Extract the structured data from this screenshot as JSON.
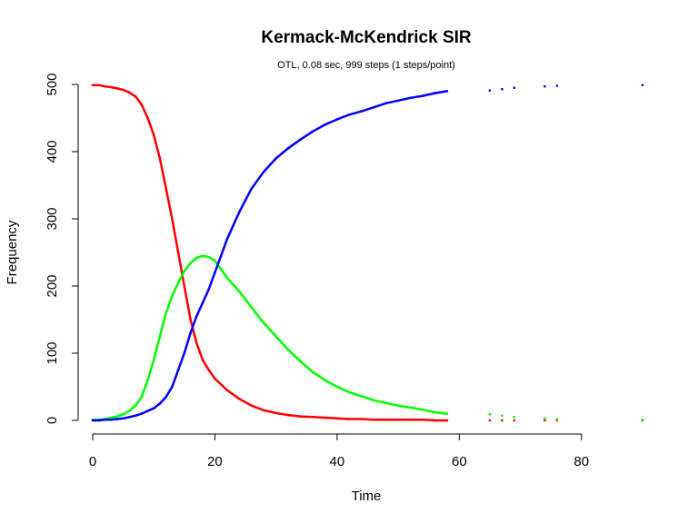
{
  "chart_data": {
    "type": "scatter",
    "title": "Kermack-McKendrick SIR",
    "subtitle": "OTL, 0.08 sec, 999 steps (1 steps/point)",
    "xlabel": "Time",
    "ylabel": "Frequency",
    "xlim": [
      0,
      90
    ],
    "ylim": [
      0,
      500
    ],
    "x_ticks": [
      0,
      20,
      40,
      60,
      80
    ],
    "y_ticks": [
      0,
      100,
      200,
      300,
      400,
      500
    ],
    "grid": false,
    "legend": "none",
    "series": [
      {
        "color": "#ff0000",
        "points": [
          [
            0,
            499
          ],
          [
            1,
            499
          ],
          [
            2,
            497
          ],
          [
            3,
            496
          ],
          [
            4,
            494
          ],
          [
            5,
            492
          ],
          [
            6,
            488
          ],
          [
            7,
            482
          ],
          [
            8,
            470
          ],
          [
            9,
            450
          ],
          [
            10,
            425
          ],
          [
            11,
            390
          ],
          [
            12,
            345
          ],
          [
            13,
            300
          ],
          [
            14,
            250
          ],
          [
            15,
            200
          ],
          [
            16,
            150
          ],
          [
            17,
            115
          ],
          [
            18,
            90
          ],
          [
            19,
            75
          ],
          [
            20,
            62
          ],
          [
            22,
            45
          ],
          [
            24,
            32
          ],
          [
            26,
            22
          ],
          [
            28,
            15
          ],
          [
            30,
            11
          ],
          [
            32,
            8
          ],
          [
            34,
            6
          ],
          [
            36,
            5
          ],
          [
            38,
            4
          ],
          [
            40,
            3
          ],
          [
            42,
            2
          ],
          [
            44,
            2
          ],
          [
            46,
            1
          ],
          [
            48,
            1
          ],
          [
            50,
            1
          ],
          [
            52,
            1
          ],
          [
            54,
            1
          ],
          [
            56,
            0
          ],
          [
            58,
            0
          ],
          [
            65,
            0
          ],
          [
            67,
            0
          ],
          [
            69,
            0
          ],
          [
            74,
            0
          ],
          [
            76,
            0
          ],
          [
            90,
            0
          ]
        ]
      },
      {
        "color": "#00ff00",
        "points": [
          [
            0,
            1
          ],
          [
            1,
            1
          ],
          [
            2,
            2
          ],
          [
            3,
            4
          ],
          [
            4,
            6
          ],
          [
            5,
            9
          ],
          [
            6,
            14
          ],
          [
            7,
            22
          ],
          [
            8,
            35
          ],
          [
            9,
            60
          ],
          [
            10,
            90
          ],
          [
            11,
            125
          ],
          [
            12,
            160
          ],
          [
            13,
            185
          ],
          [
            14,
            205
          ],
          [
            15,
            222
          ],
          [
            16,
            234
          ],
          [
            17,
            242
          ],
          [
            18,
            245
          ],
          [
            19,
            243
          ],
          [
            20,
            238
          ],
          [
            21,
            225
          ],
          [
            22,
            212
          ],
          [
            23,
            202
          ],
          [
            24,
            192
          ],
          [
            25,
            180
          ],
          [
            26,
            168
          ],
          [
            28,
            145
          ],
          [
            30,
            125
          ],
          [
            32,
            105
          ],
          [
            34,
            88
          ],
          [
            36,
            72
          ],
          [
            38,
            60
          ],
          [
            40,
            50
          ],
          [
            42,
            42
          ],
          [
            44,
            36
          ],
          [
            46,
            30
          ],
          [
            48,
            26
          ],
          [
            50,
            22
          ],
          [
            52,
            19
          ],
          [
            54,
            16
          ],
          [
            56,
            12
          ],
          [
            58,
            10
          ],
          [
            65,
            9
          ],
          [
            67,
            7
          ],
          [
            69,
            5
          ],
          [
            74,
            3
          ],
          [
            76,
            2
          ],
          [
            90,
            1
          ]
        ]
      },
      {
        "color": "#0000ff",
        "points": [
          [
            0,
            0
          ],
          [
            1,
            0
          ],
          [
            2,
            1
          ],
          [
            3,
            1
          ],
          [
            4,
            2
          ],
          [
            5,
            3
          ],
          [
            6,
            5
          ],
          [
            7,
            7
          ],
          [
            8,
            10
          ],
          [
            9,
            14
          ],
          [
            10,
            18
          ],
          [
            11,
            25
          ],
          [
            12,
            35
          ],
          [
            13,
            50
          ],
          [
            14,
            75
          ],
          [
            15,
            100
          ],
          [
            16,
            130
          ],
          [
            17,
            155
          ],
          [
            18,
            175
          ],
          [
            19,
            195
          ],
          [
            20,
            220
          ],
          [
            21,
            245
          ],
          [
            22,
            270
          ],
          [
            23,
            290
          ],
          [
            24,
            310
          ],
          [
            25,
            328
          ],
          [
            26,
            345
          ],
          [
            28,
            370
          ],
          [
            30,
            390
          ],
          [
            32,
            405
          ],
          [
            34,
            418
          ],
          [
            36,
            430
          ],
          [
            38,
            440
          ],
          [
            40,
            448
          ],
          [
            42,
            455
          ],
          [
            44,
            460
          ],
          [
            46,
            466
          ],
          [
            48,
            472
          ],
          [
            50,
            476
          ],
          [
            52,
            480
          ],
          [
            54,
            483
          ],
          [
            56,
            487
          ],
          [
            58,
            490
          ],
          [
            65,
            491
          ],
          [
            67,
            493
          ],
          [
            69,
            495
          ],
          [
            74,
            497
          ],
          [
            76,
            498
          ],
          [
            90,
            499
          ]
        ]
      }
    ]
  }
}
